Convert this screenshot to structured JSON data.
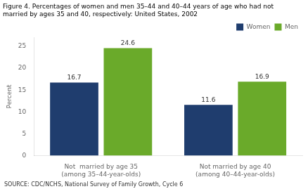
{
  "chart_data": {
    "type": "bar",
    "title": "Figure 4. Percentages of women and men 35–44 and 40–44 years of age who had not married by ages 35 and 40, respectively: United States, 2002",
    "source": "SOURCE: CDC/NCHS, National Survey of Family Growth, Cycle 6",
    "ylabel": "Percent",
    "categories": [
      "Not  married by age 35\n(among 35–44-year-olds)",
      "Not married by age 40\n(among 40–44-year-olds)"
    ],
    "series": [
      {
        "name": "Women",
        "color": "#1f3d6e",
        "values": [
          16.7,
          11.6
        ]
      },
      {
        "name": "Men",
        "color": "#6aaa2a",
        "values": [
          24.6,
          16.9
        ]
      }
    ],
    "ylim": [
      0,
      27
    ],
    "yticks": [
      0,
      5,
      10,
      15,
      20,
      25
    ],
    "grid": false,
    "legend": "upper right",
    "data_labels": true
  }
}
